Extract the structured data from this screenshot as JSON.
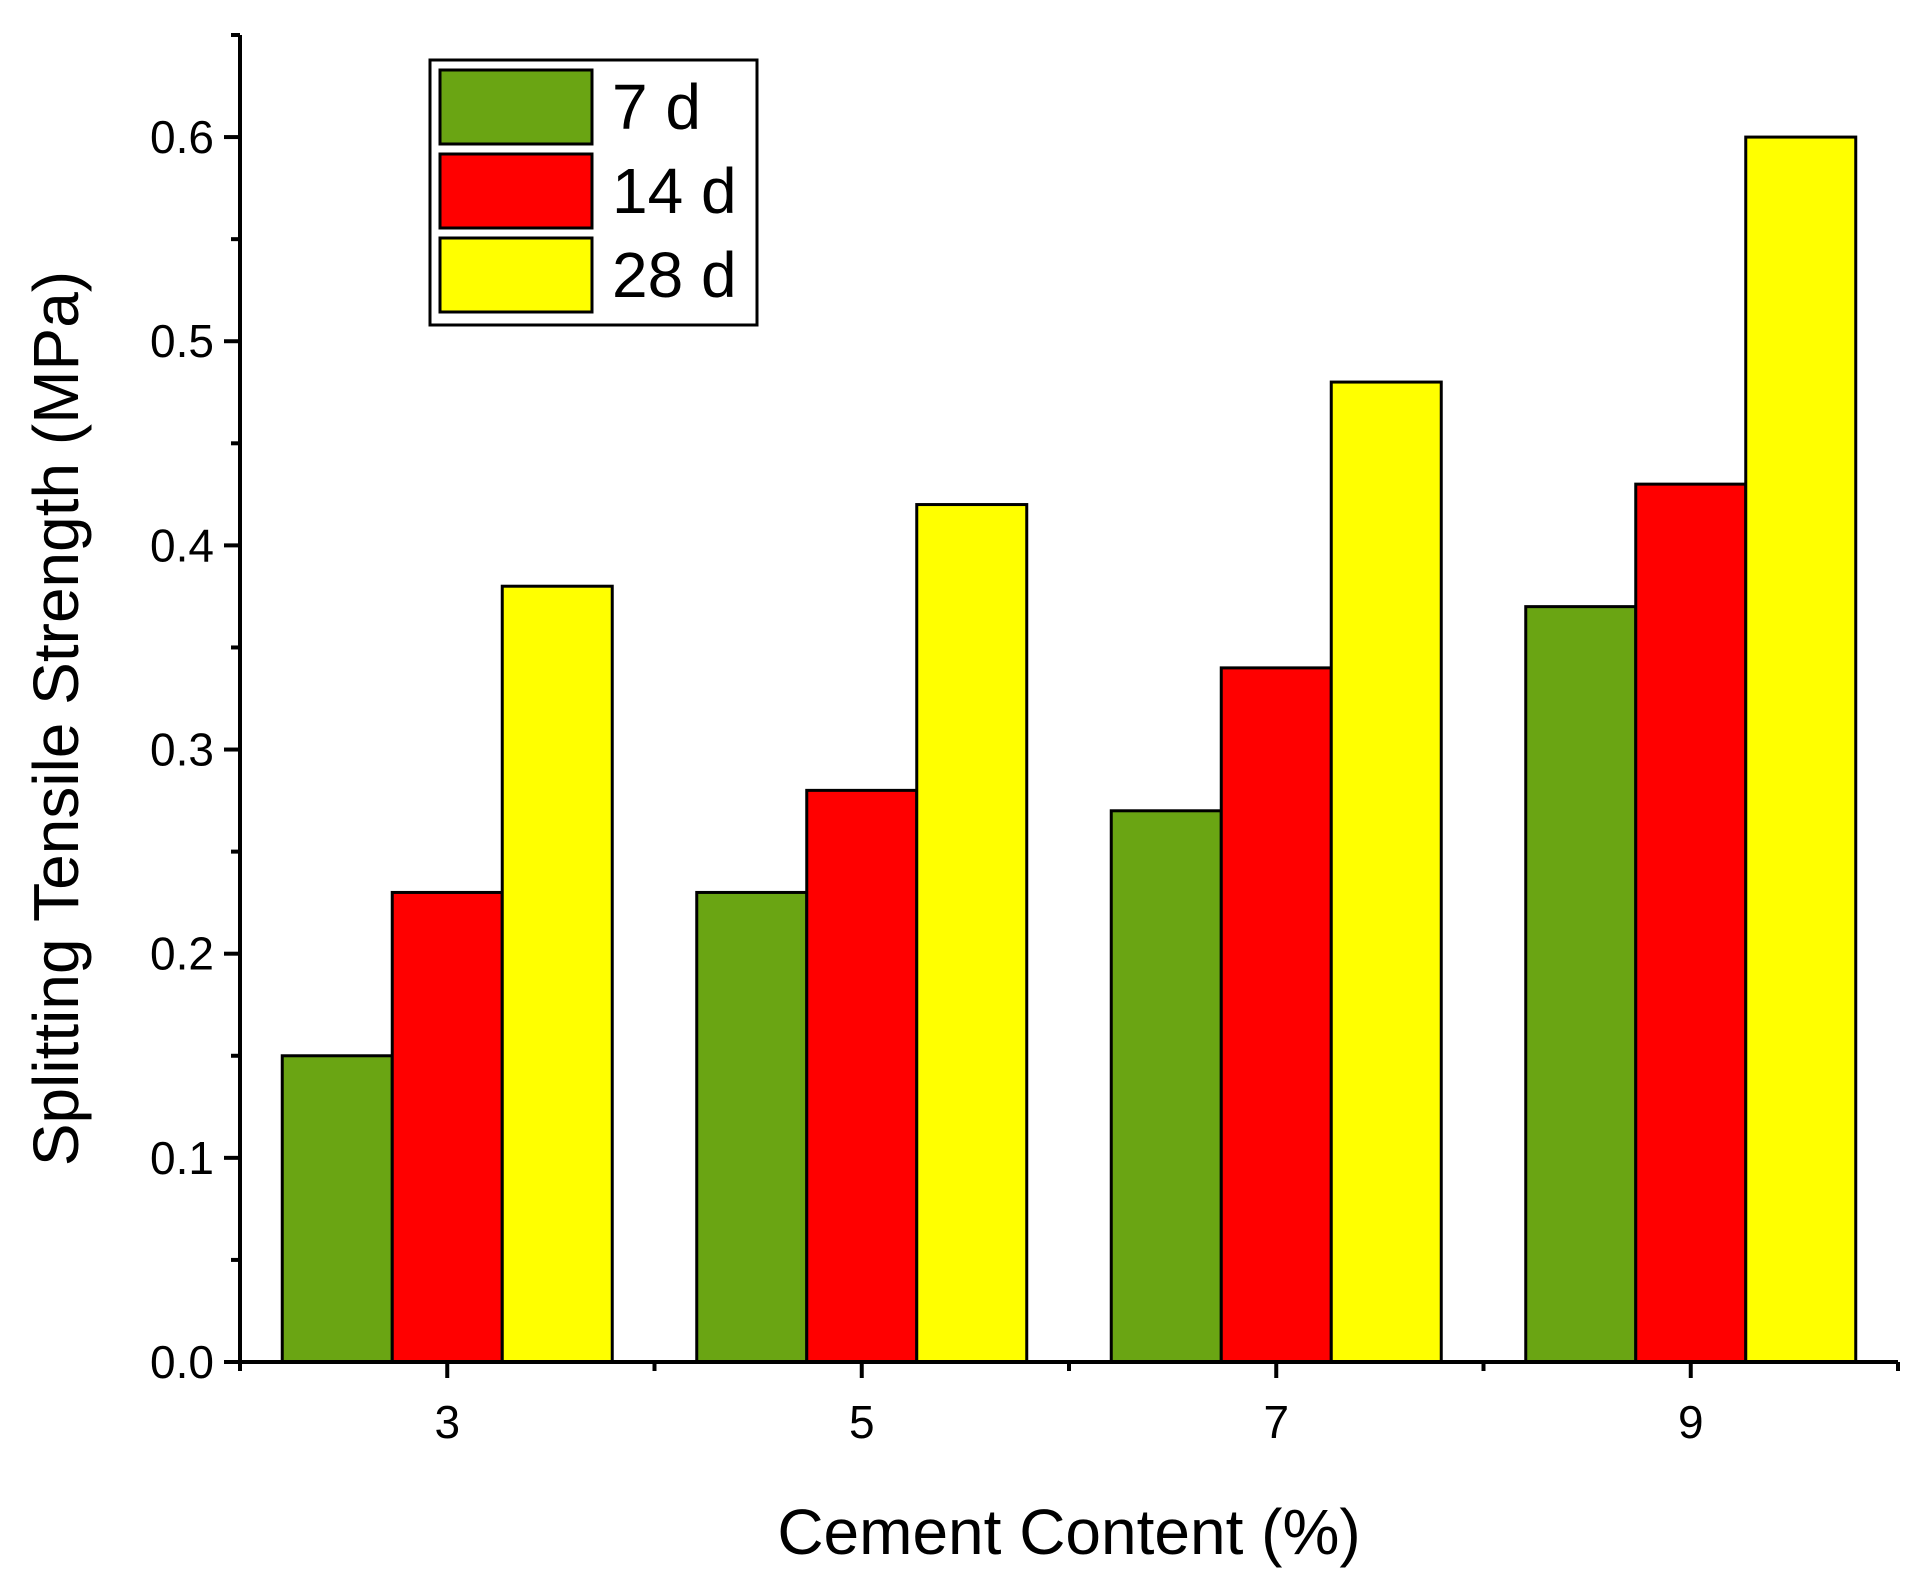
{
  "chart_data": {
    "type": "bar",
    "title": "",
    "xlabel": "Cement Content (%)",
    "ylabel": "Splitting Tensile Strength (MPa)",
    "categories": [
      "3",
      "5",
      "7",
      "9"
    ],
    "ylim": [
      0,
      0.65
    ],
    "yticks": [
      "0.0",
      "0.1",
      "0.2",
      "0.3",
      "0.4",
      "0.5",
      "0.6"
    ],
    "grid": false,
    "legend_position": "top-left",
    "series": [
      {
        "name": "7 d",
        "color": "#6aa513",
        "values": [
          0.15,
          0.23,
          0.27,
          0.37
        ]
      },
      {
        "name": "14 d",
        "color": "#ff0000",
        "values": [
          0.23,
          0.28,
          0.34,
          0.43
        ]
      },
      {
        "name": "28 d",
        "color": "#ffff00",
        "values": [
          0.38,
          0.42,
          0.48,
          0.6
        ]
      }
    ]
  }
}
